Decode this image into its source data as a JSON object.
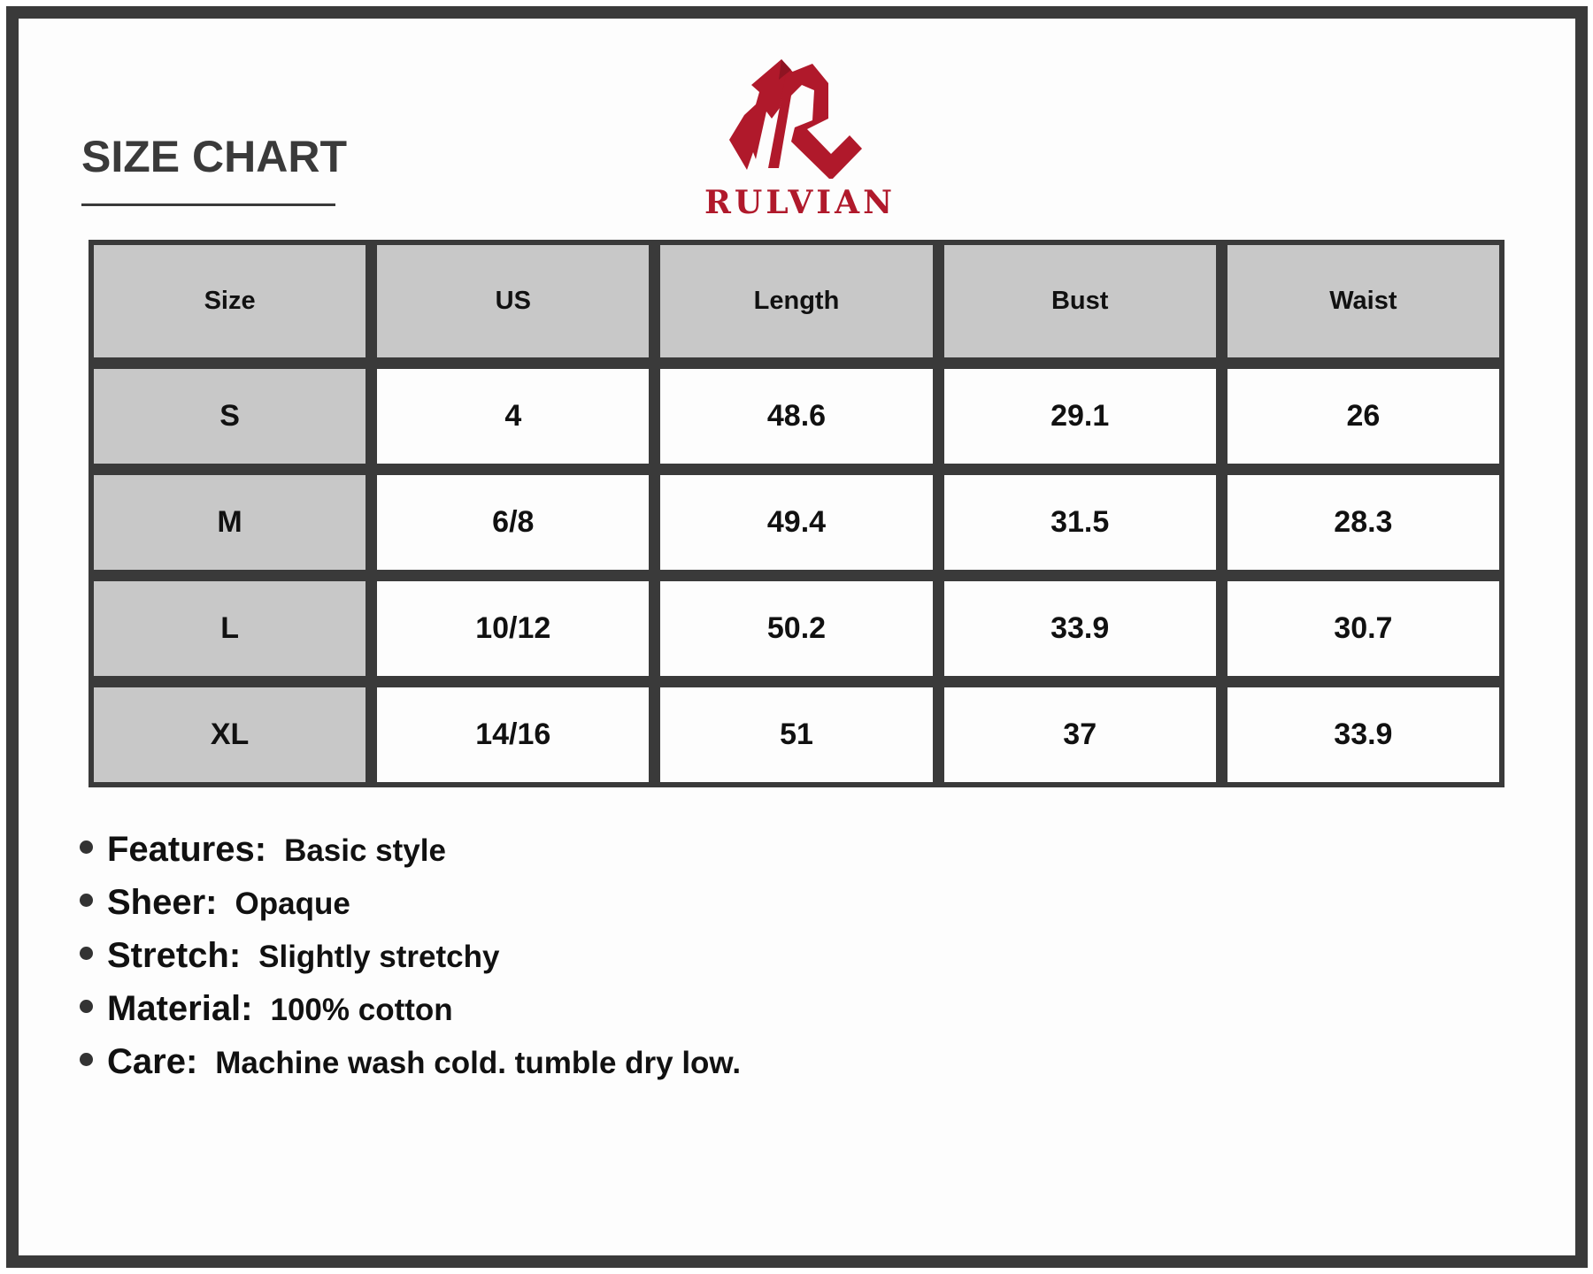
{
  "title": "SIZE CHART",
  "brand": {
    "name": "RULVIAN",
    "color": "#b0192b"
  },
  "table": {
    "headers": [
      "Size",
      "US",
      "Length",
      "Bust",
      "Waist"
    ],
    "rows": [
      [
        "S",
        "4",
        "48.6",
        "29.1",
        "26"
      ],
      [
        "M",
        "6/8",
        "49.4",
        "31.5",
        "28.3"
      ],
      [
        "L",
        "10/12",
        "50.2",
        "33.9",
        "30.7"
      ],
      [
        "XL",
        "14/16",
        "51",
        "37",
        "33.9"
      ]
    ]
  },
  "features": [
    {
      "label": "Features:",
      "value": "Basic style"
    },
    {
      "label": "Sheer:",
      "value": "Opaque"
    },
    {
      "label": "Stretch:",
      "value": "Slightly stretchy"
    },
    {
      "label": "Material:",
      "value": "100% cotton"
    },
    {
      "label": "Care:",
      "value": "Machine wash cold. tumble dry low."
    }
  ]
}
